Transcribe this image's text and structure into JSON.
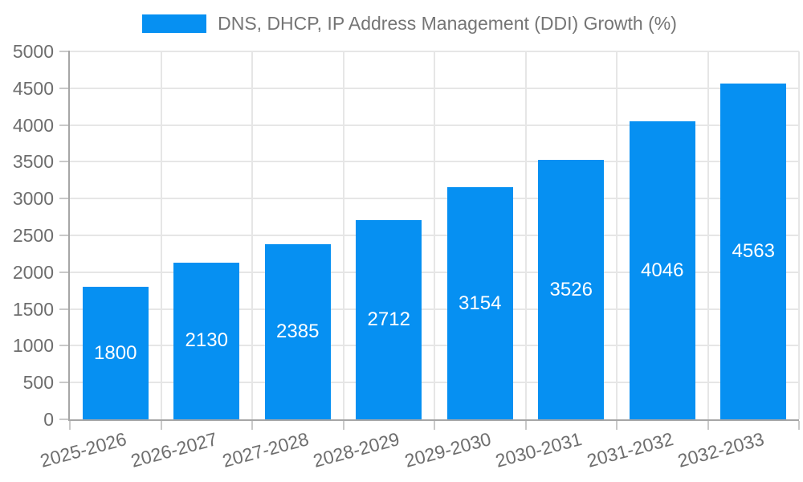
{
  "chart_data": {
    "type": "bar",
    "title": "DNS, DHCP, IP Address Management (DDI) Growth (%)",
    "categories": [
      "2025-2026",
      "2026-2027",
      "2027-2028",
      "2028-2029",
      "2029-2030",
      "2030-2031",
      "2031-2032",
      "2032-2033"
    ],
    "values": [
      1800,
      2130,
      2385,
      2712,
      3154,
      3526,
      4046,
      4563
    ],
    "bar_value_labels": [
      "1800",
      "2130",
      "2385",
      "2712",
      "3154",
      "3526",
      "4046",
      "4563"
    ],
    "xlabel": "",
    "ylabel": "",
    "ylim": [
      0,
      5000
    ],
    "yticks": [
      0,
      500,
      1000,
      1500,
      2000,
      2500,
      3000,
      3500,
      4000,
      4500,
      5000
    ],
    "grid": true,
    "legend_position": "top-center",
    "x_tick_label_rotation_deg": -15,
    "colors": {
      "bar": "#0690F2",
      "bar_label_text": "#ffffff",
      "title_text": "#757575",
      "tick_label_text": "#6e6e6e",
      "axis_line": "#a6a6a6",
      "gridline": "#e6e6e6",
      "tick_mark": "#c9c9c9",
      "background": "#ffffff"
    }
  }
}
